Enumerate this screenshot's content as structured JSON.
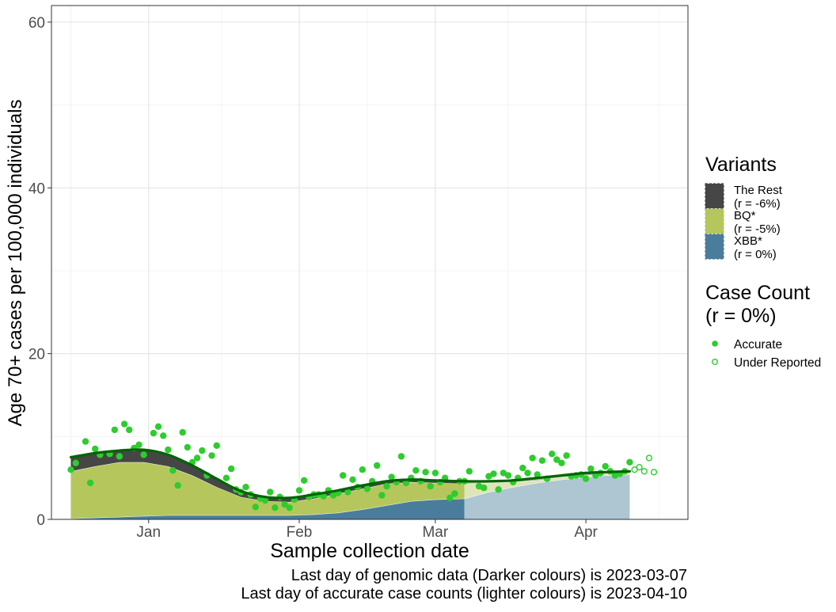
{
  "chart_data": {
    "type": "area",
    "xlabel": "Sample collection date",
    "ylabel": "Age 70+ cases per 100,000 individuals",
    "ylim": [
      0,
      62
    ],
    "xlim": [
      "2022-12-12",
      "2023-04-22"
    ],
    "y_ticks": [
      0,
      20,
      40,
      60
    ],
    "x_ticks": [
      {
        "date": "2023-01-01",
        "label": "Jan"
      },
      {
        "date": "2023-02-01",
        "label": "Feb"
      },
      {
        "date": "2023-03-01",
        "label": "Mar"
      },
      {
        "date": "2023-04-01",
        "label": "Apr"
      }
    ],
    "x_minor_ticks": [
      "2022-12-16",
      "2023-01-16",
      "2023-02-15",
      "2023-03-16",
      "2023-04-16"
    ],
    "grid": true,
    "legend_position": "right",
    "footnotes": [
      "Last day of genomic data (Darker colours) is 2023-03-07",
      "Last day of accurate case counts (lighter colours) is 2023-04-10"
    ],
    "genomic_cutoff": "2023-03-07",
    "case_cutoff": "2023-04-10",
    "variants_title": "Variants",
    "variants": [
      {
        "name": "The Rest",
        "growth": "(r = -6%)",
        "color": "#464646"
      },
      {
        "name": "BQ*",
        "growth": "(r = -5%)",
        "color": "#b5c65c"
      },
      {
        "name": "XBB*",
        "growth": "(r = 0%)",
        "color": "#4a7d9c"
      }
    ],
    "stack_dates": [
      "2022-12-16",
      "2022-12-21",
      "2022-12-26",
      "2022-12-31",
      "2023-01-05",
      "2023-01-10",
      "2023-01-15",
      "2023-01-20",
      "2023-01-25",
      "2023-01-30",
      "2023-02-04",
      "2023-02-09",
      "2023-02-14",
      "2023-02-19",
      "2023-02-24",
      "2023-03-01",
      "2023-03-07",
      "2023-03-12",
      "2023-03-17",
      "2023-03-22",
      "2023-03-27",
      "2023-04-01",
      "2023-04-05",
      "2023-04-10"
    ],
    "series": [
      {
        "name": "XBB*",
        "values": [
          0.1,
          0.2,
          0.3,
          0.4,
          0.5,
          0.5,
          0.5,
          0.5,
          0.5,
          0.5,
          0.6,
          0.8,
          1.2,
          1.7,
          2.2,
          2.4,
          2.5,
          3.3,
          3.9,
          4.4,
          4.8,
          5.1,
          5.3,
          5.4
        ]
      },
      {
        "name": "BQ*",
        "values": [
          5.7,
          6.2,
          6.6,
          6.5,
          5.9,
          4.8,
          3.4,
          2.2,
          1.7,
          1.6,
          1.9,
          2.3,
          2.5,
          2.6,
          2.3,
          2.0,
          1.8,
          1.1,
          0.6,
          0.3,
          0.3,
          0.2,
          0.2,
          0.2
        ]
      },
      {
        "name": "The Rest",
        "values": [
          1.7,
          1.6,
          1.4,
          1.5,
          1.4,
          1.2,
          1.0,
          0.7,
          0.5,
          0.5,
          0.5,
          0.4,
          0.4,
          0.3,
          0.3,
          0.3,
          0.3,
          0.2,
          0.2,
          0.2,
          0.2,
          0.2,
          0.2,
          0.2
        ]
      }
    ],
    "trend_line": [
      7.5,
      8.0,
      8.3,
      8.4,
      7.8,
      6.5,
      4.9,
      3.4,
      2.7,
      2.6,
      3.0,
      3.5,
      4.1,
      4.6,
      4.8,
      4.7,
      4.6,
      4.6,
      4.7,
      5.0,
      5.3,
      5.6,
      5.7,
      5.8
    ],
    "case_count_title": [
      "Case Count",
      "(r = 0%)"
    ],
    "case_count_legend": {
      "accurate": "Accurate",
      "under_reported": "Under Reported"
    },
    "case_points_accurate": [
      [
        "2022-12-16",
        6.0
      ],
      [
        "2022-12-17",
        6.8
      ],
      [
        "2022-12-19",
        9.4
      ],
      [
        "2022-12-20",
        4.4
      ],
      [
        "2022-12-21",
        8.5
      ],
      [
        "2022-12-22",
        7.8
      ],
      [
        "2022-12-24",
        7.9
      ],
      [
        "2022-12-25",
        10.8
      ],
      [
        "2022-12-26",
        7.6
      ],
      [
        "2022-12-27",
        11.5
      ],
      [
        "2022-12-28",
        10.8
      ],
      [
        "2022-12-29",
        8.6
      ],
      [
        "2022-12-30",
        9.0
      ],
      [
        "2022-12-31",
        7.8
      ],
      [
        "2023-01-02",
        10.4
      ],
      [
        "2023-01-03",
        11.2
      ],
      [
        "2023-01-04",
        10.1
      ],
      [
        "2023-01-05",
        8.4
      ],
      [
        "2023-01-06",
        5.9
      ],
      [
        "2023-01-07",
        4.1
      ],
      [
        "2023-01-08",
        10.5
      ],
      [
        "2023-01-09",
        8.7
      ],
      [
        "2023-01-10",
        6.9
      ],
      [
        "2023-01-11",
        7.4
      ],
      [
        "2023-01-12",
        8.3
      ],
      [
        "2023-01-13",
        5.3
      ],
      [
        "2023-01-14",
        7.7
      ],
      [
        "2023-01-15",
        8.9
      ],
      [
        "2023-01-17",
        5.0
      ],
      [
        "2023-01-18",
        6.1
      ],
      [
        "2023-01-19",
        3.6
      ],
      [
        "2023-01-20",
        3.3
      ],
      [
        "2023-01-21",
        3.9
      ],
      [
        "2023-01-22",
        3.0
      ],
      [
        "2023-01-23",
        1.5
      ],
      [
        "2023-01-24",
        2.5
      ],
      [
        "2023-01-25",
        2.3
      ],
      [
        "2023-01-26",
        3.3
      ],
      [
        "2023-01-27",
        1.4
      ],
      [
        "2023-01-28",
        2.7
      ],
      [
        "2023-01-29",
        1.8
      ],
      [
        "2023-01-30",
        1.4
      ],
      [
        "2023-01-31",
        2.4
      ],
      [
        "2023-02-01",
        3.5
      ],
      [
        "2023-02-02",
        4.7
      ],
      [
        "2023-02-03",
        2.7
      ],
      [
        "2023-02-04",
        3.0
      ],
      [
        "2023-02-05",
        3.0
      ],
      [
        "2023-02-06",
        2.8
      ],
      [
        "2023-02-07",
        3.5
      ],
      [
        "2023-02-08",
        2.9
      ],
      [
        "2023-02-09",
        3.2
      ],
      [
        "2023-02-10",
        5.3
      ],
      [
        "2023-02-11",
        3.3
      ],
      [
        "2023-02-12",
        4.8
      ],
      [
        "2023-02-13",
        3.9
      ],
      [
        "2023-02-14",
        6.0
      ],
      [
        "2023-02-15",
        3.7
      ],
      [
        "2023-02-16",
        4.6
      ],
      [
        "2023-02-17",
        6.5
      ],
      [
        "2023-02-18",
        2.9
      ],
      [
        "2023-02-19",
        4.0
      ],
      [
        "2023-02-20",
        5.1
      ],
      [
        "2023-02-21",
        4.5
      ],
      [
        "2023-02-22",
        7.6
      ],
      [
        "2023-02-23",
        4.4
      ],
      [
        "2023-02-24",
        5.0
      ],
      [
        "2023-02-25",
        5.9
      ],
      [
        "2023-02-26",
        4.6
      ],
      [
        "2023-02-27",
        5.7
      ],
      [
        "2023-02-28",
        4.0
      ],
      [
        "2023-03-01",
        5.6
      ],
      [
        "2023-03-02",
        4.5
      ],
      [
        "2023-03-03",
        5.0
      ],
      [
        "2023-03-04",
        2.6
      ],
      [
        "2023-03-05",
        3.1
      ],
      [
        "2023-03-06",
        4.6
      ],
      [
        "2023-03-07",
        4.6
      ],
      [
        "2023-03-08",
        5.8
      ],
      [
        "2023-03-10",
        4.0
      ],
      [
        "2023-03-11",
        3.8
      ],
      [
        "2023-03-12",
        5.2
      ],
      [
        "2023-03-13",
        5.5
      ],
      [
        "2023-03-14",
        3.6
      ],
      [
        "2023-03-15",
        5.6
      ],
      [
        "2023-03-16",
        5.3
      ],
      [
        "2023-03-17",
        4.5
      ],
      [
        "2023-03-18",
        5.0
      ],
      [
        "2023-03-19",
        6.2
      ],
      [
        "2023-03-20",
        5.6
      ],
      [
        "2023-03-21",
        7.4
      ],
      [
        "2023-03-22",
        5.4
      ],
      [
        "2023-03-23",
        7.1
      ],
      [
        "2023-03-24",
        4.9
      ],
      [
        "2023-03-25",
        7.9
      ],
      [
        "2023-03-26",
        7.2
      ],
      [
        "2023-03-27",
        6.8
      ],
      [
        "2023-03-28",
        7.7
      ],
      [
        "2023-03-29",
        5.2
      ],
      [
        "2023-03-30",
        5.3
      ],
      [
        "2023-03-31",
        5.4
      ],
      [
        "2023-04-01",
        4.9
      ],
      [
        "2023-04-02",
        6.1
      ],
      [
        "2023-04-03",
        5.3
      ],
      [
        "2023-04-04",
        5.6
      ],
      [
        "2023-04-05",
        6.4
      ],
      [
        "2023-04-06",
        5.8
      ],
      [
        "2023-04-07",
        5.3
      ],
      [
        "2023-04-08",
        5.5
      ],
      [
        "2023-04-09",
        5.8
      ],
      [
        "2023-04-10",
        6.9
      ]
    ],
    "case_points_under_reported": [
      [
        "2023-04-11",
        6.0
      ],
      [
        "2023-04-12",
        6.3
      ],
      [
        "2023-04-13",
        5.8
      ],
      [
        "2023-04-14",
        7.4
      ],
      [
        "2023-04-15",
        5.7
      ]
    ]
  }
}
